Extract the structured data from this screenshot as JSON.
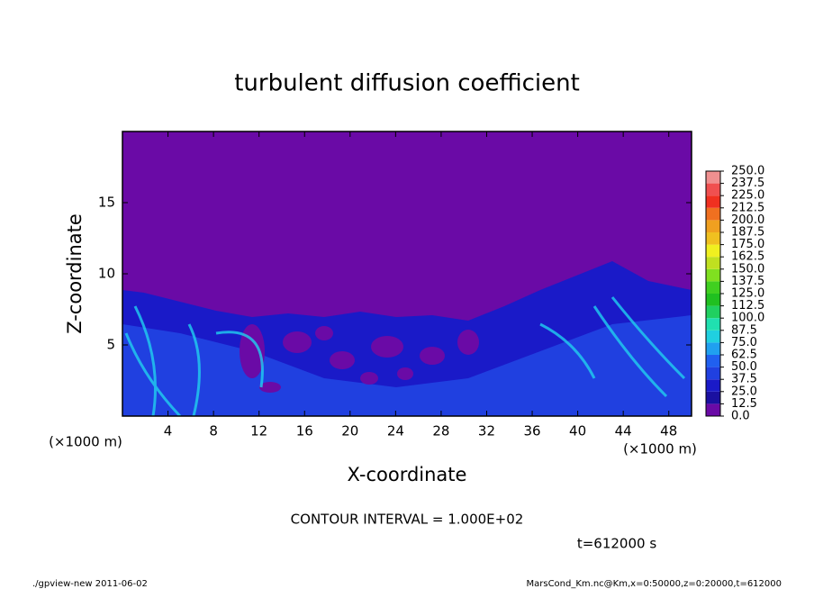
{
  "chart_data": {
    "type": "contour",
    "title": "turbulent diffusion coefficient",
    "x_label": "X-coordinate",
    "y_label": "Z-coordinate",
    "x_unit": "(×1000 m)",
    "y_unit": "(×1000 m)",
    "xlim": [
      0,
      50
    ],
    "ylim": [
      0,
      20
    ],
    "xticks": [
      4,
      8,
      12,
      16,
      20,
      24,
      28,
      32,
      36,
      40,
      44,
      48
    ],
    "yticks": [
      5,
      10,
      15
    ],
    "colorbar": {
      "levels": [
        {
          "value": 0,
          "label": "0.0"
        },
        {
          "value": 12.5,
          "label": "12.5"
        },
        {
          "value": 25,
          "label": "25.0"
        },
        {
          "value": 37.5,
          "label": "37.5"
        },
        {
          "value": 50,
          "label": "50.0"
        },
        {
          "value": 62.5,
          "label": "62.5"
        },
        {
          "value": 75,
          "label": "75.0"
        },
        {
          "value": 87.5,
          "label": "87.5"
        },
        {
          "value": 100,
          "label": "100.0"
        },
        {
          "value": 112.5,
          "label": "112.5"
        },
        {
          "value": 125,
          "label": "125.0"
        },
        {
          "value": 137.5,
          "label": "137.5"
        },
        {
          "value": 150,
          "label": "150.0"
        },
        {
          "value": 162.5,
          "label": "162.5"
        },
        {
          "value": 175,
          "label": "175.0"
        },
        {
          "value": 187.5,
          "label": "187.5"
        },
        {
          "value": 200,
          "label": "200.0"
        },
        {
          "value": 212.5,
          "label": "212.5"
        },
        {
          "value": 225,
          "label": "225.0"
        },
        {
          "value": 237.5,
          "label": "237.5"
        },
        {
          "value": 250,
          "label": "250.0"
        }
      ],
      "colors": [
        "#6a0aa6",
        "#1a10a0",
        "#1a1ac8",
        "#2040e0",
        "#2060f0",
        "#20a0f0",
        "#20d0e0",
        "#20e0b0",
        "#20d060",
        "#20c020",
        "#40d020",
        "#80e020",
        "#c0e020",
        "#f0f020",
        "#f0c020",
        "#f0a020",
        "#f07020",
        "#f03020",
        "#f05050",
        "#f09090"
      ]
    },
    "contour_interval": "CONTOUR INTERVAL = 1.000E+02",
    "time_label": "t=612000 s",
    "footer_left": "./gpview-new  2011-06-02",
    "footer_right": "MarsCond_Km.nc@Km,x=0:50000,z=0:20000,t=612000"
  }
}
